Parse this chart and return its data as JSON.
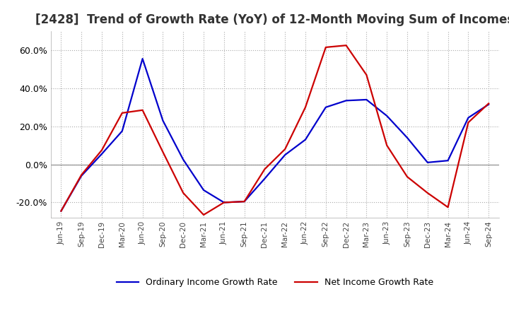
{
  "title": "[2428]  Trend of Growth Rate (YoY) of 12-Month Moving Sum of Incomes",
  "title_fontsize": 12,
  "ylim": [
    -0.28,
    0.7
  ],
  "yticks": [
    -0.2,
    0.0,
    0.2,
    0.4,
    0.6
  ],
  "background_color": "#ffffff",
  "grid_color": "#aaaaaa",
  "x_labels": [
    "Jun-19",
    "Sep-19",
    "Dec-19",
    "Mar-20",
    "Jun-20",
    "Sep-20",
    "Dec-20",
    "Mar-21",
    "Jun-21",
    "Sep-21",
    "Dec-21",
    "Mar-22",
    "Jun-22",
    "Sep-22",
    "Dec-22",
    "Mar-23",
    "Jun-23",
    "Sep-23",
    "Dec-23",
    "Mar-24",
    "Jun-24",
    "Sep-24"
  ],
  "ordinary_income": [
    -0.245,
    -0.06,
    0.055,
    0.175,
    0.555,
    0.23,
    0.025,
    -0.135,
    -0.2,
    -0.195,
    -0.075,
    0.05,
    0.13,
    0.3,
    0.335,
    0.34,
    0.255,
    0.14,
    0.01,
    0.02,
    0.245,
    0.315
  ],
  "net_income": [
    -0.245,
    -0.055,
    0.075,
    0.27,
    0.285,
    0.065,
    -0.15,
    -0.265,
    -0.2,
    -0.195,
    -0.025,
    0.08,
    0.3,
    0.615,
    0.625,
    0.47,
    0.1,
    -0.065,
    -0.15,
    -0.225,
    0.22,
    0.32
  ],
  "ordinary_color": "#0000cc",
  "net_color": "#cc0000",
  "line_width": 1.6,
  "legend_ordinary": "Ordinary Income Growth Rate",
  "legend_net": "Net Income Growth Rate"
}
